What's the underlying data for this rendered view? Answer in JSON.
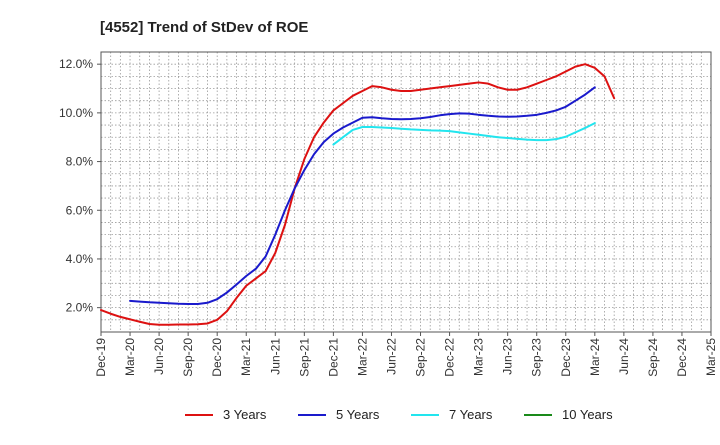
{
  "chart_data": {
    "type": "line",
    "title": "[4552]  Trend of StDev of ROE",
    "xlabel": "",
    "ylabel": "",
    "ylim": [
      1.0,
      12.5
    ],
    "y_ticks": [
      2.0,
      4.0,
      6.0,
      8.0,
      10.0,
      12.0
    ],
    "y_tick_labels": [
      "2.0%",
      "4.0%",
      "6.0%",
      "8.0%",
      "10.0%",
      "12.0%"
    ],
    "x_ticks": [
      "Dec-19",
      "Mar-20",
      "Jun-20",
      "Sep-20",
      "Dec-20",
      "Mar-21",
      "Jun-21",
      "Sep-21",
      "Dec-21",
      "Mar-22",
      "Jun-22",
      "Sep-22",
      "Dec-22",
      "Mar-23",
      "Jun-23",
      "Sep-23",
      "Dec-23",
      "Mar-24",
      "Jun-24",
      "Sep-24",
      "Dec-24",
      "Mar-25"
    ],
    "grid": true,
    "legend_position": "bottom",
    "series": [
      {
        "name": "3 Years",
        "color": "#dd1111",
        "start_index": 0,
        "values": [
          1.9,
          1.75,
          1.62,
          1.52,
          1.42,
          1.33,
          1.3,
          1.3,
          1.31,
          1.31,
          1.32,
          1.35,
          1.5,
          1.85,
          2.4,
          2.9,
          3.2,
          3.5,
          4.25,
          5.4,
          6.9,
          8.1,
          9.0,
          9.6,
          10.1,
          10.4,
          10.7,
          10.9,
          11.1,
          11.05,
          10.95,
          10.9,
          10.9,
          10.95,
          11.0,
          11.05,
          11.1,
          11.15,
          11.2,
          11.25,
          11.2,
          11.05,
          10.95,
          10.95,
          11.05,
          11.2,
          11.35,
          11.5,
          11.7,
          11.9,
          12.0,
          11.85,
          11.5,
          10.6
        ]
      },
      {
        "name": "5 Years",
        "color": "#1a1acc",
        "start_index": 3,
        "values": [
          2.28,
          2.25,
          2.22,
          2.2,
          2.18,
          2.16,
          2.15,
          2.15,
          2.2,
          2.35,
          2.62,
          2.95,
          3.3,
          3.6,
          4.1,
          5.0,
          6.0,
          6.9,
          7.65,
          8.3,
          8.8,
          9.15,
          9.4,
          9.6,
          9.8,
          9.82,
          9.78,
          9.75,
          9.74,
          9.75,
          9.78,
          9.83,
          9.9,
          9.95,
          9.98,
          9.97,
          9.92,
          9.88,
          9.85,
          9.84,
          9.85,
          9.88,
          9.92,
          10.0,
          10.1,
          10.25,
          10.5,
          10.75,
          11.05
        ]
      },
      {
        "name": "7 Years",
        "color": "#22e5ee",
        "start_index": 24,
        "values": [
          8.7,
          9.0,
          9.3,
          9.42,
          9.42,
          9.4,
          9.38,
          9.35,
          9.32,
          9.3,
          9.28,
          9.27,
          9.25,
          9.2,
          9.15,
          9.1,
          9.05,
          9.0,
          8.97,
          8.93,
          8.9,
          8.88,
          8.88,
          8.92,
          9.02,
          9.2,
          9.38,
          9.58
        ]
      },
      {
        "name": "10 Years",
        "color": "#1a8a1a",
        "start_index": 0,
        "values": []
      }
    ]
  }
}
